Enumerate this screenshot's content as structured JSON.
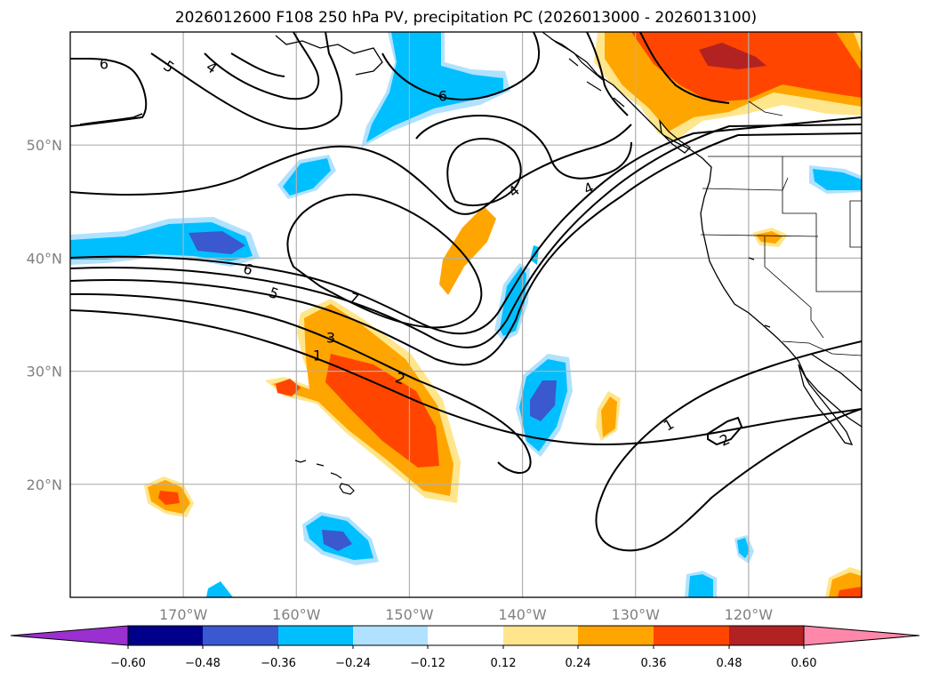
{
  "chart_data": {
    "type": "contour-map",
    "title": "2026012600 F108 250 hPa PV, precipitation PC (2026013000 - 2026013100)",
    "lon_range": [
      -180,
      -110
    ],
    "lat_range": [
      10,
      60
    ],
    "lat_labels": [
      "20°N",
      "30°N",
      "40°N",
      "50°N"
    ],
    "lat_values": [
      20,
      30,
      40,
      50
    ],
    "lon_labels": [
      "170°W",
      "160°W",
      "150°W",
      "140°W",
      "130°W",
      "120°W"
    ],
    "lon_values": [
      -170,
      -160,
      -150,
      -140,
      -130,
      -120
    ],
    "colorbar": {
      "ticks": [
        "−0.60",
        "−0.48",
        "−0.36",
        "−0.24",
        "−0.12",
        "0.12",
        "0.24",
        "0.36",
        "0.48",
        "0.60"
      ],
      "colors": [
        "#9a30d0",
        "#00008b",
        "#3a58cf",
        "#00bfff",
        "#b0e2ff",
        "#ffffff",
        "#ffe68c",
        "#ffa500",
        "#ff4500",
        "#b22222",
        "#ff88aa"
      ]
    },
    "contour_labels": [
      "6",
      "5",
      "4",
      "6",
      "4",
      "4",
      "6",
      "5",
      "7",
      "3",
      "1",
      "2",
      "1",
      "2"
    ],
    "pv_contour_levels": [
      1,
      2,
      3,
      4,
      5,
      6,
      7
    ]
  }
}
